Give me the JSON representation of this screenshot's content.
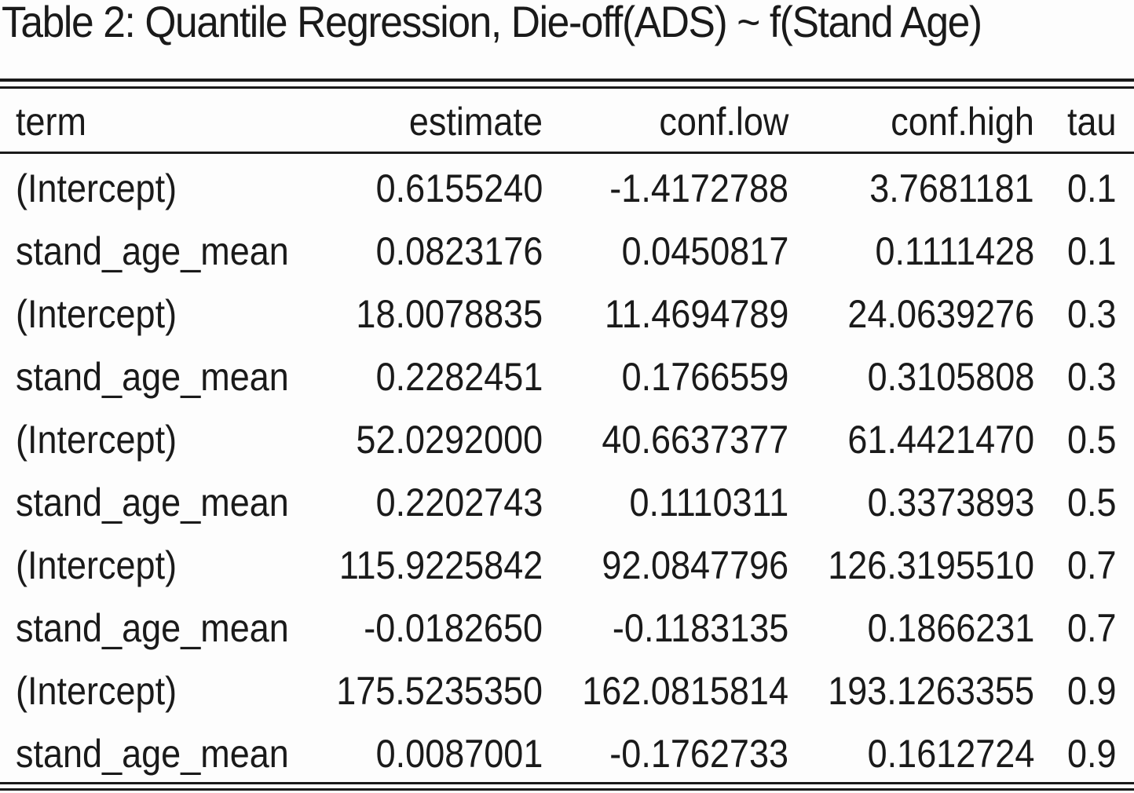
{
  "table": {
    "caption": "Table 2: Quantile Regression, Die-off(ADS) ~ f(Stand Age)",
    "headers": {
      "term": "term",
      "estimate": "estimate",
      "conf_low": "conf.low",
      "conf_high": "conf.high",
      "tau": "tau"
    },
    "rows": [
      {
        "term": "(Intercept)",
        "estimate": "0.6155240",
        "conf_low": "-1.4172788",
        "conf_high": "3.7681181",
        "tau": "0.1"
      },
      {
        "term": "stand_age_mean",
        "estimate": "0.0823176",
        "conf_low": "0.0450817",
        "conf_high": "0.1111428",
        "tau": "0.1"
      },
      {
        "term": "(Intercept)",
        "estimate": "18.0078835",
        "conf_low": "11.4694789",
        "conf_high": "24.0639276",
        "tau": "0.3"
      },
      {
        "term": "stand_age_mean",
        "estimate": "0.2282451",
        "conf_low": "0.1766559",
        "conf_high": "0.3105808",
        "tau": "0.3"
      },
      {
        "term": "(Intercept)",
        "estimate": "52.0292000",
        "conf_low": "40.6637377",
        "conf_high": "61.4421470",
        "tau": "0.5"
      },
      {
        "term": "stand_age_mean",
        "estimate": "0.2202743",
        "conf_low": "0.1110311",
        "conf_high": "0.3373893",
        "tau": "0.5"
      },
      {
        "term": "(Intercept)",
        "estimate": "115.9225842",
        "conf_low": "92.0847796",
        "conf_high": "126.3195510",
        "tau": "0.7"
      },
      {
        "term": "stand_age_mean",
        "estimate": "-0.0182650",
        "conf_low": "-0.1183135",
        "conf_high": "0.1866231",
        "tau": "0.7"
      },
      {
        "term": "(Intercept)",
        "estimate": "175.5235350",
        "conf_low": "162.0815814",
        "conf_high": "193.1263355",
        "tau": "0.9"
      },
      {
        "term": "stand_age_mean",
        "estimate": "0.0087001",
        "conf_low": "-0.1762733",
        "conf_high": "0.1612724",
        "tau": "0.9"
      }
    ]
  }
}
